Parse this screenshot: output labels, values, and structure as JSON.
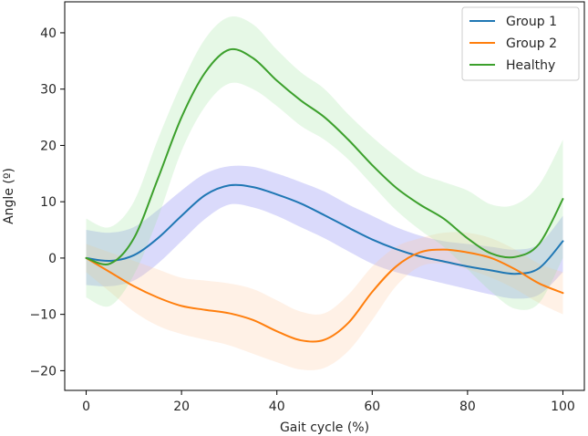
{
  "chart_data": {
    "type": "line",
    "title": "",
    "xlabel": "Gait cycle (%)",
    "ylabel": "Angle (º)",
    "xlim": [
      -4.5,
      104.5
    ],
    "ylim": [
      -23.5,
      45.5
    ],
    "xticks": [
      0,
      20,
      40,
      60,
      80,
      100
    ],
    "yticks": [
      -20,
      -10,
      0,
      10,
      20,
      30,
      40
    ],
    "grid": false,
    "legend_position": "top-right",
    "series": [
      {
        "name": "Group 1",
        "color": "#1f77b4",
        "band_color": "#6a6af0",
        "x": [
          0,
          5,
          10,
          15,
          20,
          25,
          30,
          35,
          40,
          45,
          50,
          55,
          60,
          65,
          70,
          75,
          80,
          85,
          90,
          95,
          100
        ],
        "mean": [
          0,
          -0.5,
          0.5,
          3.5,
          7.5,
          11.2,
          12.9,
          12.6,
          11.3,
          9.7,
          7.6,
          5.4,
          3.3,
          1.6,
          0.3,
          -0.6,
          -1.5,
          -2.2,
          -2.8,
          -1.8,
          3.0
        ],
        "lower": [
          -4.8,
          -5,
          -4,
          -1,
          3,
          7,
          9.5,
          9,
          7.5,
          5.5,
          3.5,
          1.2,
          -1,
          -2.5,
          -3.5,
          -4.5,
          -5.5,
          -6.5,
          -7.2,
          -6.5,
          -2.5
        ],
        "upper": [
          5,
          4.5,
          5.5,
          8.5,
          12,
          15,
          16.3,
          16.2,
          15,
          13.5,
          11.8,
          9.5,
          7.5,
          5.5,
          4,
          3,
          2.5,
          2,
          1.5,
          2.5,
          7.5
        ]
      },
      {
        "name": "Group 2",
        "color": "#ff7f0e",
        "band_color": "#ffc99a",
        "x": [
          0,
          5,
          10,
          15,
          20,
          25,
          30,
          35,
          40,
          45,
          50,
          55,
          60,
          65,
          70,
          75,
          80,
          85,
          90,
          95,
          100
        ],
        "mean": [
          0,
          -2.5,
          -5,
          -7,
          -8.5,
          -9.2,
          -9.8,
          -11,
          -13,
          -14.6,
          -14.5,
          -11.5,
          -6,
          -1.5,
          1,
          1.5,
          1,
          0,
          -2,
          -4.5,
          -6.2
        ],
        "lower": [
          -2.5,
          -6,
          -9.5,
          -12,
          -13.5,
          -14.5,
          -15.5,
          -17,
          -18.5,
          -19.8,
          -19.5,
          -16.5,
          -11,
          -5,
          -1.5,
          -1,
          -2,
          -3.5,
          -5.5,
          -8,
          -10
        ],
        "upper": [
          2.5,
          1,
          -0.5,
          -2,
          -3.5,
          -4,
          -4.5,
          -5.5,
          -7.5,
          -9.5,
          -9.8,
          -6.5,
          -1.5,
          2,
          3.5,
          4.5,
          4.5,
          3.5,
          1.5,
          -1,
          -2.5
        ]
      },
      {
        "name": "Healthy",
        "color": "#3ca02c",
        "band_color": "#9de59d",
        "x": [
          0,
          5,
          10,
          15,
          20,
          25,
          30,
          35,
          40,
          45,
          50,
          55,
          60,
          65,
          70,
          75,
          80,
          85,
          90,
          95,
          100
        ],
        "mean": [
          0,
          -1,
          3.5,
          14,
          25,
          33,
          37,
          35.5,
          31.5,
          28,
          25,
          21,
          16.5,
          12.5,
          9.5,
          7,
          3.5,
          0.8,
          0.2,
          2.5,
          10.5
        ],
        "lower": [
          -7,
          -8.5,
          -3,
          7,
          19,
          27,
          31,
          30,
          27,
          23.5,
          21,
          17.5,
          13,
          8.5,
          5,
          2,
          -2,
          -6,
          -9,
          -8,
          0
        ],
        "upper": [
          7,
          5.5,
          10,
          21,
          31,
          39,
          42.8,
          41.5,
          37,
          33,
          30,
          25.5,
          21.5,
          18,
          15,
          13.5,
          12,
          9.5,
          9.5,
          13,
          21
        ]
      }
    ]
  }
}
